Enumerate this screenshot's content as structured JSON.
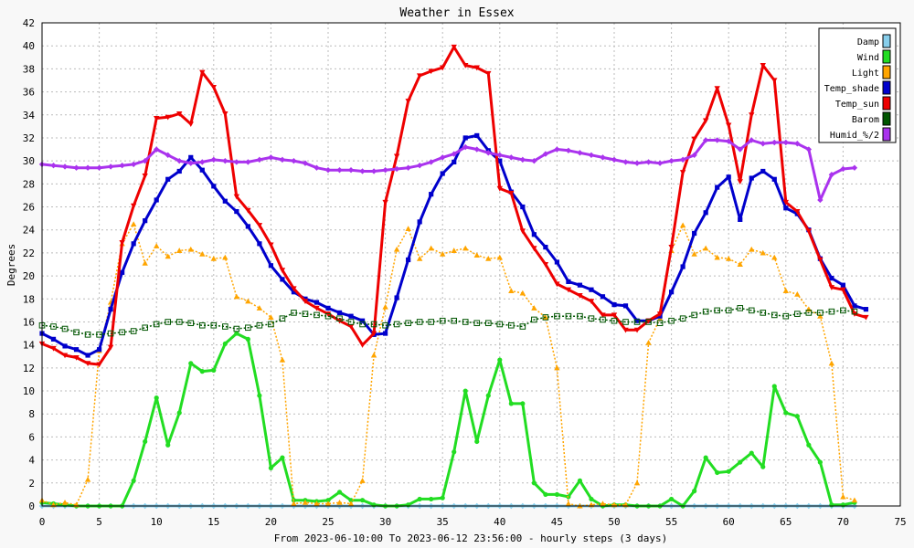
{
  "chart_data": {
    "type": "line",
    "title": "Weather in Essex",
    "xlabel": "From 2023-06-10:00 To 2023-06-12 23:56:00 - hourly steps (3 days)",
    "ylabel": "Degrees",
    "xlim": [
      0,
      75
    ],
    "ylim": [
      0,
      42
    ],
    "x_ticks": [
      0,
      5,
      10,
      15,
      20,
      25,
      30,
      35,
      40,
      45,
      50,
      55,
      60,
      65,
      70,
      75
    ],
    "y_ticks": [
      0,
      2,
      4,
      6,
      8,
      10,
      12,
      14,
      16,
      18,
      20,
      22,
      24,
      26,
      28,
      30,
      32,
      34,
      36,
      38,
      40,
      42
    ],
    "grid": true,
    "legend_position": "top-right",
    "series": [
      {
        "name": "Damp",
        "color": "#87CEEB",
        "marker": "diamond",
        "dashed": false,
        "width": 3,
        "values": [
          0,
          0,
          0,
          0,
          0,
          0,
          0,
          0,
          0,
          0,
          0,
          0,
          0,
          0,
          0,
          0,
          0,
          0,
          0,
          0,
          0,
          0,
          0,
          0,
          0,
          0,
          0,
          0,
          0,
          0,
          0,
          0,
          0,
          0,
          0,
          0,
          0,
          0,
          0,
          0,
          0,
          0,
          0,
          0,
          0,
          0,
          0,
          0,
          0,
          0,
          0,
          0,
          0,
          0,
          0,
          0,
          0,
          0,
          0,
          0,
          0,
          0,
          0,
          0,
          0,
          0,
          0,
          0,
          0,
          0,
          0,
          0
        ]
      },
      {
        "name": "Wind",
        "color": "#22DD22",
        "marker": "circle",
        "dashed": false,
        "width": 3,
        "values": [
          0.3,
          0.2,
          0.1,
          0,
          0,
          0,
          0,
          0,
          2.2,
          5.6,
          9.4,
          5.3,
          8.1,
          12.4,
          11.7,
          11.8,
          14.1,
          15.0,
          14.5,
          9.6,
          3.3,
          4.2,
          0.5,
          0.5,
          0.4,
          0.5,
          1.2,
          0.5,
          0.5,
          0.1,
          0,
          0,
          0.1,
          0.6,
          0.6,
          0.7,
          4.7,
          10.0,
          5.6,
          9.6,
          12.7,
          8.9,
          8.9,
          2.0,
          1.0,
          1.0,
          0.8,
          2.2,
          0.6,
          0,
          0.1,
          0.1,
          0,
          0,
          0,
          0.6,
          0,
          1.3,
          4.2,
          2.9,
          3.0,
          3.8,
          4.6,
          3.4,
          10.4,
          8.1,
          7.8,
          5.3,
          3.8,
          0.1,
          0.1,
          0.3
        ]
      },
      {
        "name": "Light",
        "color": "#FFA500",
        "marker": "triangle",
        "dashed": true,
        "width": 1.5,
        "values": [
          0.5,
          0.1,
          0.3,
          0.1,
          2.3,
          13.5,
          17.7,
          22.8,
          24.5,
          21.1,
          22.6,
          21.7,
          22.2,
          22.3,
          21.9,
          21.5,
          21.6,
          18.2,
          17.8,
          17.2,
          16.4,
          12.7,
          0.2,
          0.3,
          0.2,
          0.2,
          0.3,
          0.2,
          2.2,
          13.1,
          17.3,
          22.3,
          24.1,
          21.5,
          22.4,
          21.9,
          22.2,
          22.4,
          21.8,
          21.5,
          21.6,
          18.7,
          18.5,
          17.2,
          16.4,
          12.0,
          0.2,
          0,
          0.1,
          0.2,
          0.1,
          0.1,
          2.0,
          14.2,
          16.3,
          22.2,
          24.4,
          21.9,
          22.4,
          21.6,
          21.5,
          21.0,
          22.3,
          22.0,
          21.6,
          18.7,
          18.4,
          17.1,
          16.5,
          12.4,
          0.8,
          0.5
        ]
      },
      {
        "name": "Temp_shade",
        "color": "#0000CC",
        "marker": "square",
        "dashed": false,
        "width": 3,
        "values": [
          15.0,
          14.5,
          13.9,
          13.6,
          13.1,
          13.6,
          17.1,
          20.3,
          22.8,
          24.8,
          26.6,
          28.4,
          29.1,
          30.3,
          29.2,
          27.8,
          26.5,
          25.6,
          24.3,
          22.8,
          20.9,
          19.7,
          18.6,
          18.0,
          17.7,
          17.2,
          16.8,
          16.5,
          16.1,
          14.9,
          15.0,
          18.1,
          21.4,
          24.7,
          27.1,
          28.9,
          29.9,
          32.0,
          32.2,
          30.9,
          30.0,
          27.3,
          26.0,
          23.6,
          22.5,
          21.2,
          19.5,
          19.2,
          18.8,
          18.2,
          17.5,
          17.4,
          16.1,
          16.1,
          16.5,
          18.6,
          20.8,
          23.7,
          25.5,
          27.7,
          28.6,
          24.9,
          28.5,
          29.1,
          28.4,
          25.9,
          25.4,
          24.0,
          21.5,
          19.8,
          19.2,
          17.4,
          17.1
        ]
      },
      {
        "name": "Temp_sun",
        "color": "#EE0000",
        "marker": "triangle-down",
        "dashed": false,
        "width": 3,
        "values": [
          14.1,
          13.7,
          13.1,
          12.9,
          12.4,
          12.3,
          13.8,
          22.9,
          26.1,
          28.7,
          33.7,
          33.8,
          34.1,
          33.2,
          37.7,
          36.4,
          34.1,
          26.9,
          25.7,
          24.4,
          22.7,
          20.5,
          18.9,
          17.8,
          17.2,
          16.7,
          16.1,
          15.6,
          14.0,
          15.0,
          26.4,
          30.4,
          35.2,
          37.4,
          37.8,
          38.1,
          39.9,
          38.3,
          38.1,
          37.6,
          27.6,
          27.2,
          23.9,
          22.4,
          21.0,
          19.3,
          18.8,
          18.3,
          17.8,
          16.6,
          16.6,
          15.3,
          15.3,
          16.1,
          16.7,
          22.5,
          29.0,
          31.9,
          33.5,
          36.3,
          33.1,
          28.2,
          34.0,
          38.3,
          37.0,
          26.4,
          25.6,
          23.9,
          21.4,
          19.0,
          18.8,
          16.7,
          16.4
        ]
      },
      {
        "name": "Barom",
        "color": "#005500",
        "marker": "hollow-square",
        "dashed": true,
        "width": 1.5,
        "values": [
          15.7,
          15.6,
          15.4,
          15.1,
          14.9,
          14.9,
          15.0,
          15.1,
          15.2,
          15.5,
          15.8,
          16.0,
          16.0,
          15.9,
          15.7,
          15.7,
          15.6,
          15.4,
          15.5,
          15.7,
          15.8,
          16.3,
          16.8,
          16.7,
          16.6,
          16.5,
          16.3,
          16.0,
          15.8,
          15.8,
          15.7,
          15.8,
          15.9,
          16.0,
          16.0,
          16.1,
          16.1,
          16.0,
          15.9,
          15.9,
          15.8,
          15.7,
          15.6,
          16.2,
          16.4,
          16.5,
          16.5,
          16.5,
          16.3,
          16.2,
          16.1,
          16.0,
          16.0,
          16.0,
          15.9,
          16.1,
          16.3,
          16.6,
          16.9,
          17.0,
          17.0,
          17.2,
          17.0,
          16.8,
          16.6,
          16.5,
          16.7,
          16.8,
          16.8,
          16.9,
          17.0,
          16.9
        ]
      },
      {
        "name": "Humid_%/2",
        "color": "#AA33EE",
        "marker": "diamond",
        "dashed": false,
        "width": 3,
        "values": [
          29.7,
          29.6,
          29.5,
          29.4,
          29.4,
          29.4,
          29.5,
          29.6,
          29.7,
          30.0,
          31.0,
          30.5,
          30.0,
          29.8,
          29.9,
          30.1,
          30.0,
          29.9,
          29.9,
          30.1,
          30.3,
          30.1,
          30.0,
          29.8,
          29.4,
          29.2,
          29.2,
          29.2,
          29.1,
          29.1,
          29.2,
          29.3,
          29.4,
          29.6,
          29.9,
          30.3,
          30.6,
          31.2,
          31.0,
          30.7,
          30.5,
          30.3,
          30.1,
          30.0,
          30.6,
          31.0,
          30.9,
          30.7,
          30.5,
          30.3,
          30.1,
          29.9,
          29.8,
          29.9,
          29.8,
          30.0,
          30.1,
          30.5,
          31.8,
          31.8,
          31.7,
          31.0,
          31.8,
          31.5,
          31.6,
          31.6,
          31.5,
          31.0,
          26.6,
          28.8,
          29.3,
          29.4
        ]
      }
    ]
  }
}
